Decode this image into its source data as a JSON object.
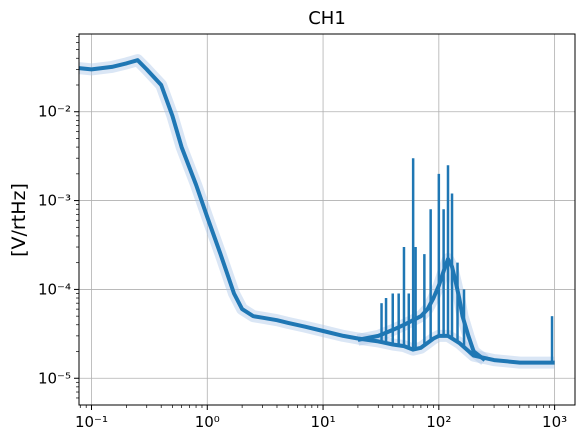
{
  "chart_data": {
    "type": "line",
    "title": "CH1",
    "xlabel": "",
    "ylabel": "[V/rtHz]",
    "xscale": "log",
    "yscale": "log",
    "xlim": [
      0.078,
      1500
    ],
    "ylim": [
      5e-06,
      0.075
    ],
    "grid": true,
    "series_color": "#1f77b4",
    "band_color": "#aec7e8",
    "x_ticks": [
      {
        "value": 0.1,
        "label": "10⁻¹"
      },
      {
        "value": 1,
        "label": "10⁰"
      },
      {
        "value": 10,
        "label": "10¹"
      },
      {
        "value": 100,
        "label": "10²"
      },
      {
        "value": 1000,
        "label": "10³"
      }
    ],
    "y_ticks": [
      {
        "value": 1e-05,
        "label": "10⁻⁵"
      },
      {
        "value": 0.0001,
        "label": "10⁻⁴"
      },
      {
        "value": 0.001,
        "label": "10⁻³"
      },
      {
        "value": 0.01,
        "label": "10⁻²"
      }
    ],
    "series": [
      {
        "x": [
          0.078,
          0.1,
          0.15,
          0.2,
          0.25,
          0.3,
          0.4,
          0.5,
          0.6,
          0.8,
          1.0,
          1.3,
          1.7,
          2.0,
          2.5,
          3,
          4,
          5,
          7,
          10,
          15,
          20,
          30,
          40,
          50,
          60,
          70,
          80,
          90,
          100,
          120,
          150,
          200,
          300,
          500,
          700,
          1000
        ],
        "y": [
          0.031,
          0.03,
          0.032,
          0.035,
          0.038,
          0.03,
          0.02,
          0.009,
          0.004,
          0.0015,
          0.00065,
          0.00025,
          9e-05,
          6e-05,
          5e-05,
          4.8e-05,
          4.5e-05,
          4.2e-05,
          3.8e-05,
          3.4e-05,
          3e-05,
          2.8e-05,
          2.6e-05,
          2.4e-05,
          2.3e-05,
          2.1e-05,
          2.2e-05,
          2.5e-05,
          2.8e-05,
          3e-05,
          3e-05,
          2.5e-05,
          1.8e-05,
          1.6e-05,
          1.5e-05,
          1.5e-05,
          1.5e-05
        ]
      },
      {
        "x": [
          20,
          30,
          40,
          50,
          60,
          70,
          80,
          90,
          100,
          110,
          120,
          130,
          140,
          150,
          160,
          180,
          200,
          250
        ],
        "y": [
          2.7e-05,
          3e-05,
          3.5e-05,
          4e-05,
          4.5e-05,
          5e-05,
          6e-05,
          8e-05,
          0.00011,
          0.00016,
          0.00022,
          0.00018,
          0.00012,
          8e-05,
          5e-05,
          3e-05,
          2e-05,
          1.6e-05
        ]
      }
    ],
    "peaks": [
      {
        "x": 32,
        "y": 7e-05
      },
      {
        "x": 35,
        "y": 8e-05
      },
      {
        "x": 40,
        "y": 9e-05
      },
      {
        "x": 45,
        "y": 9e-05
      },
      {
        "x": 50,
        "y": 0.0003
      },
      {
        "x": 55,
        "y": 9e-05
      },
      {
        "x": 60,
        "y": 0.003
      },
      {
        "x": 63,
        "y": 0.0003
      },
      {
        "x": 75,
        "y": 0.00025
      },
      {
        "x": 85,
        "y": 0.0008
      },
      {
        "x": 100,
        "y": 0.002
      },
      {
        "x": 110,
        "y": 0.0008
      },
      {
        "x": 120,
        "y": 0.0025
      },
      {
        "x": 130,
        "y": 0.0012
      },
      {
        "x": 145,
        "y": 0.0002
      },
      {
        "x": 165,
        "y": 0.0001
      },
      {
        "x": 950,
        "y": 5e-05
      }
    ]
  }
}
